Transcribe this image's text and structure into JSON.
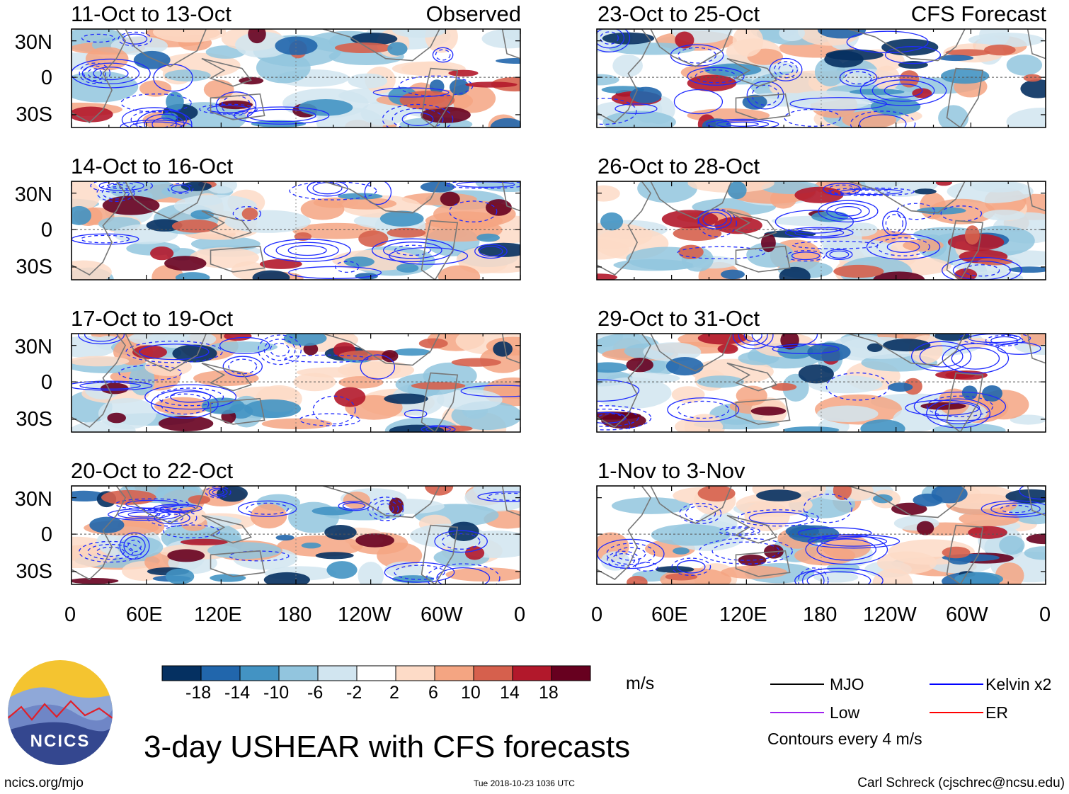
{
  "title": "3-day USHEAR with CFS forecasts",
  "column_labels": {
    "left": "Observed",
    "right": "CFS Forecast"
  },
  "panels": [
    {
      "label": "11-Oct to 13-Oct",
      "column": "left",
      "row": 0,
      "seed": 11
    },
    {
      "label": "14-Oct to 16-Oct",
      "column": "left",
      "row": 1,
      "seed": 14
    },
    {
      "label": "17-Oct to 19-Oct",
      "column": "left",
      "row": 2,
      "seed": 17
    },
    {
      "label": "20-Oct to 22-Oct",
      "column": "left",
      "row": 3,
      "seed": 20
    },
    {
      "label": "23-Oct to 25-Oct",
      "column": "right",
      "row": 0,
      "seed": 23
    },
    {
      "label": "26-Oct to 28-Oct",
      "column": "right",
      "row": 1,
      "seed": 26
    },
    {
      "label": "29-Oct to 31-Oct",
      "column": "right",
      "row": 2,
      "seed": 29
    },
    {
      "label": "1-Nov to 3-Nov",
      "column": "right",
      "row": 3,
      "seed": 32
    }
  ],
  "lat_ticks": [
    "30N",
    "0",
    "30S"
  ],
  "lon_ticks": [
    "0",
    "60E",
    "120E",
    "180",
    "120W",
    "60W",
    "0"
  ],
  "colorbar": {
    "colors": [
      "#053061",
      "#2166ac",
      "#4393c3",
      "#92c5de",
      "#d1e5f0",
      "#ffffff",
      "#fddbc7",
      "#f4a582",
      "#d6604d",
      "#b2182b",
      "#67001f"
    ],
    "labels": [
      "-18",
      "-14",
      "-10",
      "-6",
      "-2",
      "2",
      "6",
      "10",
      "14",
      "18"
    ],
    "units": "m/s"
  },
  "legend": {
    "items": [
      {
        "label": "MJO",
        "color": "#000000"
      },
      {
        "label": "Kelvin x2",
        "color": "#0000ff"
      },
      {
        "label": "Low",
        "color": "#a020f0"
      },
      {
        "label": "ER",
        "color": "#ff0000"
      }
    ],
    "note": "Contours every 4 m/s"
  },
  "logo": {
    "text": "NCICS"
  },
  "footer": {
    "left": "ncics.org/mjo",
    "center": "Tue 2018-10-23 1036 UTC",
    "right": "Carl Schreck (cjschrec@ncsu.edu)"
  }
}
